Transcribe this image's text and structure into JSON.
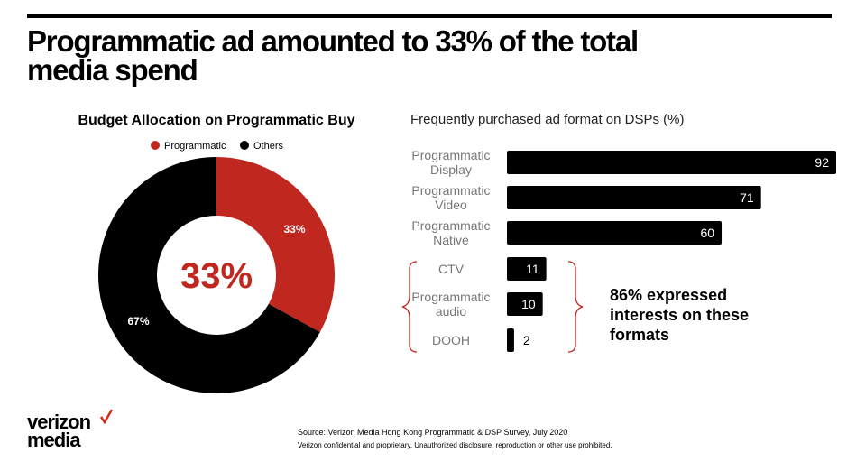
{
  "title": "Programmatic ad amounted to 33% of the total media spend",
  "chart_data": [
    {
      "type": "donut",
      "title": "Budget Allocation on Programmatic Buy",
      "categories": [
        "Programmatic",
        "Others"
      ],
      "values": [
        33,
        67
      ],
      "value_labels": [
        "33%",
        "67%"
      ],
      "colors": [
        "#c0281f",
        "#000000"
      ],
      "center_label": "33%",
      "legend": "top"
    },
    {
      "type": "bar",
      "orientation": "horizontal",
      "title": "Frequently purchased ad format on DSPs (%)",
      "categories": [
        "Programmatic Display",
        "Programmatic Video",
        "Programmatic Native",
        "CTV",
        "Programmatic audio",
        "DOOH"
      ],
      "values": [
        92,
        71,
        60,
        11,
        10,
        2
      ],
      "color": "#000000",
      "annotation": "86% expressed interests on these formats"
    }
  ],
  "source": "Source: Verizon Media Hong Kong Programmatic & DSP Survey, July 2020",
  "disclaimer": "Verizon confidential and proprietary. Unauthorized disclosure, reproduction or other use prohibited.",
  "logo": [
    "verizon",
    "media"
  ]
}
